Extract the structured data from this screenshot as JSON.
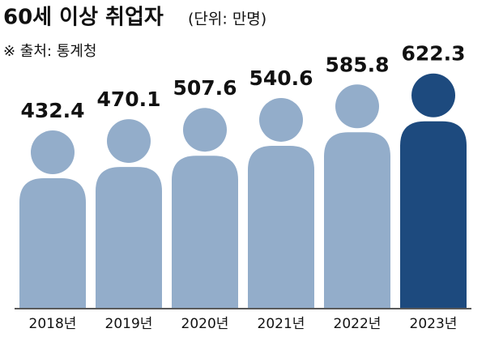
{
  "chart_data": {
    "type": "bar",
    "title": "60세 이상 취업자",
    "subtitle": "(단위: 만명)",
    "source": "※ 출처: 통계청",
    "categories": [
      "2018년",
      "2019년",
      "2020년",
      "2021년",
      "2022년",
      "2023년"
    ],
    "values": [
      432.4,
      470.1,
      507.6,
      540.6,
      585.8,
      622.3
    ],
    "colors": [
      "#93adca",
      "#93adca",
      "#93adca",
      "#93adca",
      "#93adca",
      "#1d4a7e"
    ]
  }
}
